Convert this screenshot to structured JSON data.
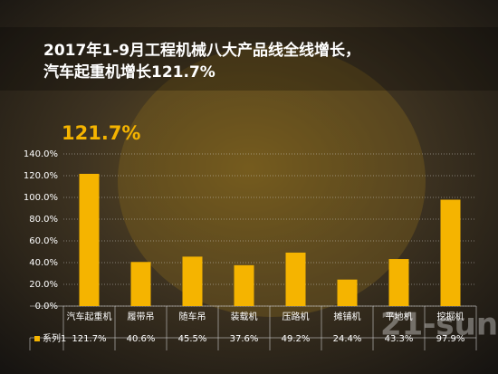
{
  "chart_data": {
    "type": "bar",
    "title": [
      "2017年1-9月工程机械八大产品线全线增长，",
      "汽车起重机增长121.7%"
    ],
    "annotation": "121.7%",
    "watermark": "21-sun",
    "categories": [
      "汽车起重机",
      "履带吊",
      "随车吊",
      "装载机",
      "压路机",
      "摊铺机",
      "平地机",
      "挖掘机"
    ],
    "series": [
      {
        "name": "系列1",
        "color": "#f5b400",
        "values": [
          121.7,
          40.6,
          45.5,
          37.6,
          49.2,
          24.4,
          43.3,
          97.9
        ],
        "value_labels": [
          "121.7%",
          "40.6%",
          "45.5%",
          "37.6%",
          "49.2%",
          "24.4%",
          "43.3%",
          "97.9%"
        ]
      }
    ],
    "ylim": [
      0,
      140
    ],
    "yticks": [
      {
        "value": 0,
        "label": "0.0%"
      },
      {
        "value": 20,
        "label": "20.0%"
      },
      {
        "value": 40,
        "label": "40.0%"
      },
      {
        "value": 60,
        "label": "60.0%"
      },
      {
        "value": 80,
        "label": "80.0%"
      },
      {
        "value": 100,
        "label": "100.0%"
      },
      {
        "value": 120,
        "label": "120.0%"
      },
      {
        "value": 140,
        "label": "140.0%"
      }
    ],
    "grid": true
  }
}
